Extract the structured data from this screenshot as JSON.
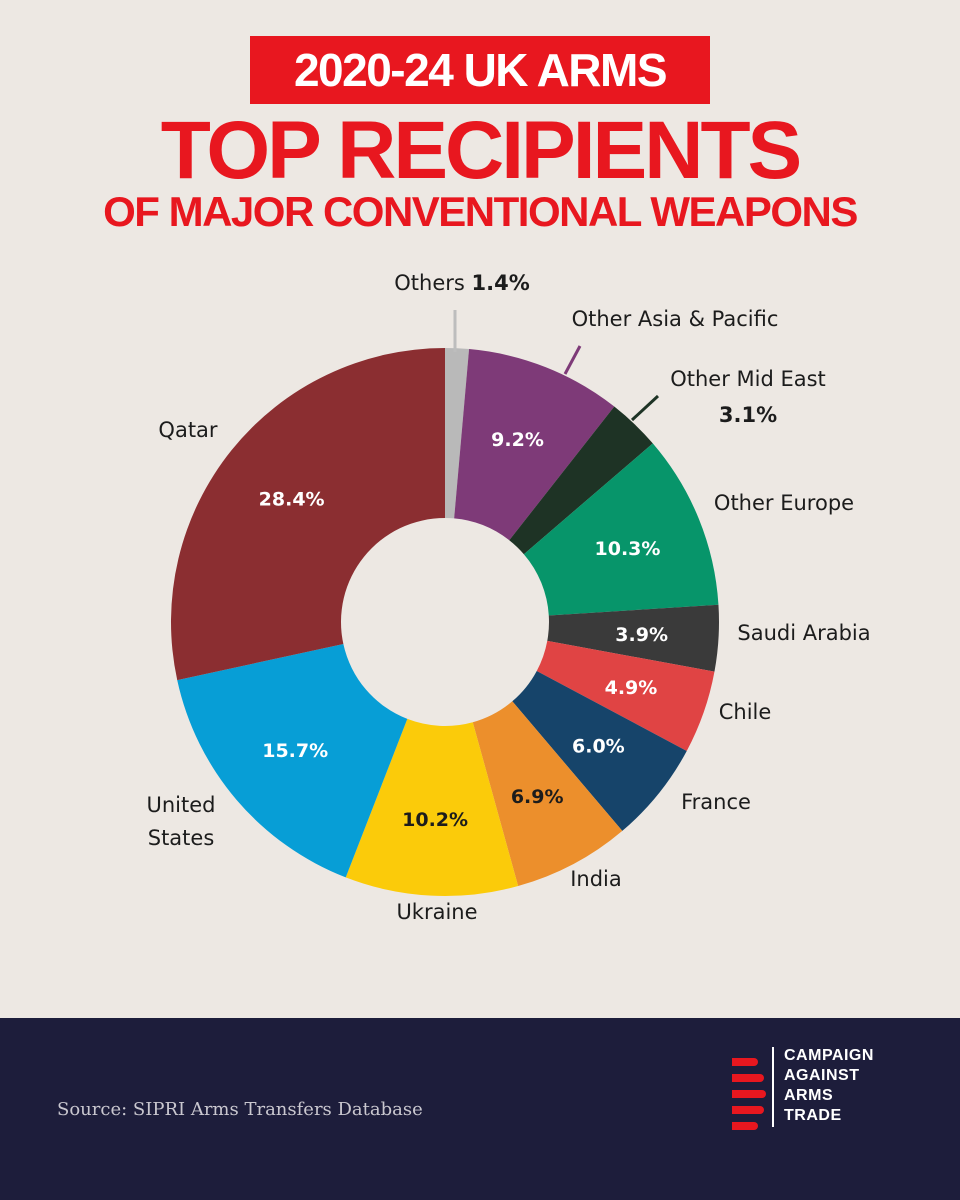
{
  "title": {
    "line1": "2020-24 UK ARMS",
    "line2": "TOP RECIPIENTS",
    "line3": "OF MAJOR CONVENTIONAL WEAPONS"
  },
  "colors": {
    "accent": "#e8171f",
    "background": "#ede8e3",
    "footer": "#1d1d3b"
  },
  "chart_data": {
    "type": "pie",
    "donut": true,
    "slices": [
      {
        "label": "Others",
        "value": 1.4,
        "display": "1.4%",
        "color": "#b9b9b9"
      },
      {
        "label": "Other Asia & Pacific",
        "value": 9.2,
        "display": "9.2%",
        "color": "#7e3a78"
      },
      {
        "label": "Other Mid East",
        "value": 3.1,
        "display": "3.1%",
        "color": "#1e3325"
      },
      {
        "label": "Other Europe",
        "value": 10.3,
        "display": "10.3%",
        "color": "#07956a"
      },
      {
        "label": "Saudi Arabia",
        "value": 3.9,
        "display": "3.9%",
        "color": "#3a3a3a"
      },
      {
        "label": "Chile",
        "value": 4.9,
        "display": "4.9%",
        "color": "#e04444"
      },
      {
        "label": "France",
        "value": 6.0,
        "display": "6.0%",
        "color": "#16446a"
      },
      {
        "label": "India",
        "value": 6.9,
        "display": "6.9%",
        "color": "#ec8f2c"
      },
      {
        "label": "Ukraine",
        "value": 10.2,
        "display": "10.2%",
        "color": "#fbcb0a"
      },
      {
        "label": "United States",
        "value": 15.7,
        "display": "15.7%",
        "color": "#079ed6"
      },
      {
        "label": "Qatar",
        "value": 28.4,
        "display": "28.4%",
        "color": "#8b2e31"
      }
    ]
  },
  "footer": {
    "source": "Source: SIPRI Arms Transfers Database",
    "logo_lines": [
      "CAMPAIGN",
      "AGAINST",
      "ARMS",
      "TRADE"
    ]
  }
}
